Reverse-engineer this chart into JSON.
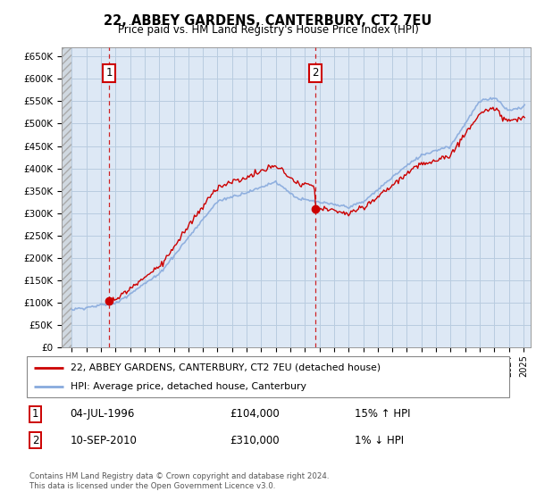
{
  "title": "22, ABBEY GARDENS, CANTERBURY, CT2 7EU",
  "subtitle": "Price paid vs. HM Land Registry's House Price Index (HPI)",
  "legend_line1": "22, ABBEY GARDENS, CANTERBURY, CT2 7EU (detached house)",
  "legend_line2": "HPI: Average price, detached house, Canterbury",
  "annotation1_label": "1",
  "annotation1_date": "04-JUL-1996",
  "annotation1_price": "£104,000",
  "annotation1_hpi": "15% ↑ HPI",
  "annotation2_label": "2",
  "annotation2_date": "10-SEP-2010",
  "annotation2_price": "£310,000",
  "annotation2_hpi": "1% ↓ HPI",
  "footer": "Contains HM Land Registry data © Crown copyright and database right 2024.\nThis data is licensed under the Open Government Licence v3.0.",
  "sale1_year": 1996.55,
  "sale1_value": 104000,
  "sale2_year": 2010.7,
  "sale2_value": 310000,
  "price_color": "#cc0000",
  "hpi_color": "#88aadd",
  "background_color": "#dde8f5",
  "grid_color": "#b8cce0",
  "ylim": [
    0,
    670000
  ],
  "yticks": [
    0,
    50000,
    100000,
    150000,
    200000,
    250000,
    300000,
    350000,
    400000,
    450000,
    500000,
    550000,
    600000,
    650000
  ],
  "xlim_start": 1993.3,
  "xlim_end": 2025.5,
  "fig_width": 6.0,
  "fig_height": 5.6,
  "dpi": 100
}
